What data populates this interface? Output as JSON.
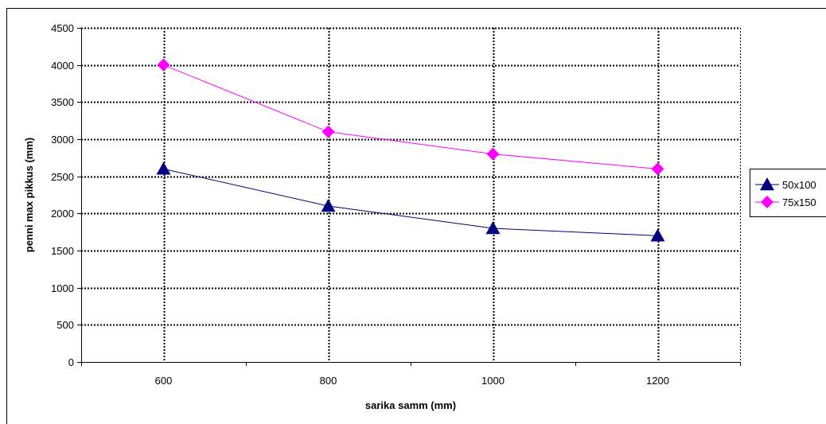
{
  "chart_data": {
    "type": "line",
    "title": "",
    "xlabel": "sarika samm (mm)",
    "ylabel": "penni max pikkus (mm)",
    "categories": [
      "600",
      "800",
      "1000",
      "1200"
    ],
    "ylim": [
      0,
      4500
    ],
    "yticks": [
      "0",
      "500",
      "1000",
      "1500",
      "2000",
      "2500",
      "3000",
      "3500",
      "4000",
      "4500"
    ],
    "grid": true,
    "legend_position": "right",
    "series": [
      {
        "name": "50x100",
        "values": [
          2600,
          2100,
          1800,
          1700
        ],
        "color": "#000080",
        "marker": "triangle"
      },
      {
        "name": "75x150",
        "values": [
          4000,
          3100,
          2800,
          2600
        ],
        "color": "#FF00FF",
        "marker": "diamond"
      }
    ]
  }
}
